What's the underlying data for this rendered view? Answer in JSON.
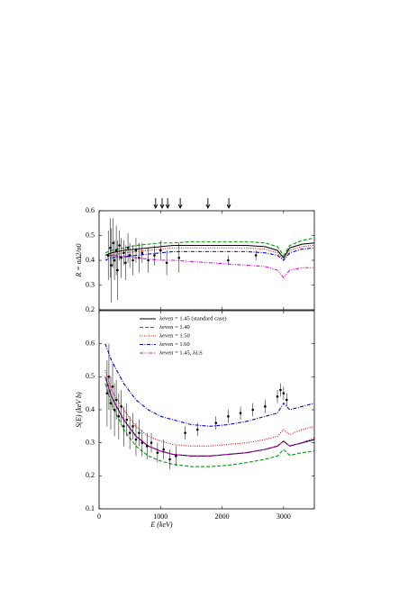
{
  "chart_data": [
    {
      "type": "line",
      "ylabel": "R = σΔ2/σ0",
      "x": [
        100,
        200,
        400,
        600,
        800,
        1000,
        1200,
        1500,
        1800,
        2100,
        2400,
        2700,
        2900,
        3000,
        3100,
        3300,
        3500
      ],
      "series": [
        {
          "name": "λeven = 1.45 (standard case)",
          "color": "#000000",
          "linestyle": "solid",
          "values": [
            0.42,
            0.43,
            0.44,
            0.445,
            0.45,
            0.455,
            0.46,
            0.46,
            0.46,
            0.46,
            0.46,
            0.455,
            0.44,
            0.41,
            0.45,
            0.465,
            0.47
          ]
        },
        {
          "name": "λeven = 1.40",
          "color": "#009900",
          "linestyle": "dashed",
          "values": [
            0.43,
            0.44,
            0.45,
            0.46,
            0.465,
            0.47,
            0.47,
            0.475,
            0.475,
            0.475,
            0.475,
            0.47,
            0.455,
            0.42,
            0.46,
            0.48,
            0.49
          ]
        },
        {
          "name": "λeven = 1.50",
          "color": "#dd0000",
          "linestyle": "dotted",
          "values": [
            0.41,
            0.42,
            0.43,
            0.435,
            0.44,
            0.445,
            0.45,
            0.45,
            0.45,
            0.45,
            0.45,
            0.445,
            0.43,
            0.4,
            0.44,
            0.455,
            0.46
          ]
        },
        {
          "name": "λeven = 1.60",
          "color": "#0000dd",
          "linestyle": "dashdot",
          "values": [
            0.4,
            0.41,
            0.415,
            0.42,
            0.425,
            0.43,
            0.435,
            0.435,
            0.435,
            0.435,
            0.435,
            0.43,
            0.42,
            0.4,
            0.43,
            0.445,
            0.45
          ]
        },
        {
          "name": "λeven = 1.45, λLS",
          "color": "#dd00dd",
          "linestyle": "dashdotdot",
          "values": [
            0.42,
            0.42,
            0.415,
            0.41,
            0.405,
            0.4,
            0.4,
            0.395,
            0.39,
            0.385,
            0.38,
            0.375,
            0.36,
            0.33,
            0.36,
            0.37,
            0.37
          ]
        }
      ],
      "points": {
        "x": [
          150,
          180,
          200,
          230,
          250,
          280,
          300,
          330,
          360,
          400,
          430,
          470,
          500,
          550,
          600,
          650,
          700,
          800,
          900,
          1000,
          1100,
          1300,
          2100,
          2550
        ],
        "y": [
          0.42,
          0.45,
          0.38,
          0.47,
          0.4,
          0.44,
          0.36,
          0.46,
          0.41,
          0.43,
          0.39,
          0.45,
          0.42,
          0.4,
          0.44,
          0.41,
          0.43,
          0.4,
          0.42,
          0.44,
          0.39,
          0.41,
          0.4,
          0.42
        ],
        "err": [
          0.1,
          0.12,
          0.15,
          0.1,
          0.08,
          0.1,
          0.12,
          0.06,
          0.08,
          0.05,
          0.07,
          0.06,
          0.05,
          0.06,
          0.05,
          0.06,
          0.04,
          0.05,
          0.04,
          0.04,
          0.05,
          0.06,
          0.02,
          0.02
        ]
      },
      "arrows": [
        920,
        1025,
        1115,
        1320,
        1770,
        2110
      ],
      "xlim": [
        0,
        3500
      ],
      "xticks": [
        0,
        1000,
        2000,
        3000
      ],
      "ylim": [
        0.2,
        0.6
      ],
      "yticks": [
        0.2,
        0.3,
        0.4,
        0.5,
        0.6
      ]
    },
    {
      "type": "line",
      "ylabel": "S(E) (keV b)",
      "xlabel": "E (keV)",
      "legend": "upper right",
      "x": [
        100,
        200,
        400,
        600,
        800,
        1000,
        1200,
        1500,
        1800,
        2100,
        2400,
        2700,
        2900,
        3000,
        3100,
        3300,
        3500
      ],
      "series": [
        {
          "name": "λeven = 1.45 (standard case)",
          "color": "#000000",
          "linestyle": "solid",
          "values": [
            0.5,
            0.44,
            0.37,
            0.32,
            0.29,
            0.275,
            0.265,
            0.26,
            0.26,
            0.265,
            0.27,
            0.28,
            0.29,
            0.305,
            0.29,
            0.3,
            0.31
          ]
        },
        {
          "name": "λeven = 1.40",
          "color": "#009900",
          "linestyle": "dashed",
          "values": [
            0.48,
            0.42,
            0.34,
            0.29,
            0.26,
            0.245,
            0.235,
            0.228,
            0.228,
            0.232,
            0.24,
            0.25,
            0.26,
            0.28,
            0.262,
            0.27,
            0.275
          ]
        },
        {
          "name": "λeven = 1.50",
          "color": "#dd0000",
          "linestyle": "dotted",
          "values": [
            0.52,
            0.46,
            0.4,
            0.35,
            0.32,
            0.305,
            0.295,
            0.29,
            0.29,
            0.295,
            0.3,
            0.31,
            0.32,
            0.34,
            0.325,
            0.34,
            0.35
          ]
        },
        {
          "name": "λeven = 1.60",
          "color": "#0000dd",
          "linestyle": "dashdot",
          "values": [
            0.6,
            0.55,
            0.48,
            0.43,
            0.4,
            0.38,
            0.37,
            0.355,
            0.35,
            0.355,
            0.365,
            0.38,
            0.39,
            0.42,
            0.4,
            0.41,
            0.42
          ]
        },
        {
          "name": "λeven = 1.45, λLS",
          "color": "#dd00dd",
          "linestyle": "dashdotdot",
          "values": [
            0.5,
            0.44,
            0.37,
            0.32,
            0.29,
            0.275,
            0.265,
            0.26,
            0.26,
            0.265,
            0.27,
            0.28,
            0.29,
            0.305,
            0.29,
            0.3,
            0.315
          ]
        }
      ],
      "points": {
        "x": [
          130,
          160,
          190,
          220,
          250,
          280,
          320,
          360,
          400,
          450,
          500,
          550,
          600,
          650,
          700,
          780,
          850,
          950,
          1050,
          1150,
          1250,
          1400,
          1600,
          1900,
          2100,
          2300,
          2500,
          2700,
          2900,
          2950,
          3000,
          3050
        ],
        "y": [
          0.45,
          0.5,
          0.42,
          0.47,
          0.4,
          0.43,
          0.38,
          0.41,
          0.35,
          0.37,
          0.33,
          0.35,
          0.31,
          0.33,
          0.3,
          0.29,
          0.3,
          0.27,
          0.28,
          0.25,
          0.26,
          0.33,
          0.34,
          0.36,
          0.38,
          0.39,
          0.4,
          0.41,
          0.44,
          0.46,
          0.45,
          0.43
        ],
        "err": [
          0.1,
          0.1,
          0.08,
          0.07,
          0.08,
          0.06,
          0.07,
          0.05,
          0.06,
          0.05,
          0.05,
          0.04,
          0.05,
          0.04,
          0.04,
          0.04,
          0.03,
          0.03,
          0.03,
          0.03,
          0.03,
          0.02,
          0.02,
          0.02,
          0.02,
          0.02,
          0.02,
          0.02,
          0.02,
          0.02,
          0.02,
          0.02
        ]
      },
      "xlim": [
        0,
        3500
      ],
      "xticks": [
        0,
        1000,
        2000,
        3000
      ],
      "ylim": [
        0.1,
        0.7
      ],
      "yticks": [
        0.1,
        0.2,
        0.3,
        0.4,
        0.5,
        0.6
      ]
    }
  ]
}
